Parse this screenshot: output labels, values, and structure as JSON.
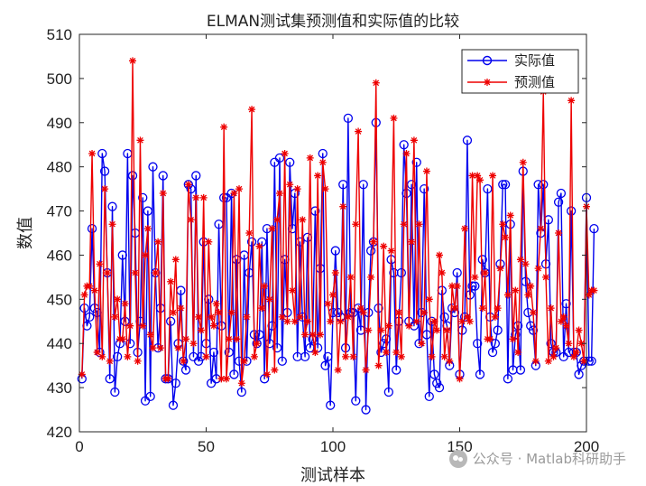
{
  "chart_data": {
    "type": "line",
    "title": "ELMAN测试集预测值和实际值的比较",
    "xlabel": "测试样本",
    "ylabel": "数值",
    "xlim": [
      0,
      200
    ],
    "ylim": [
      420,
      510
    ],
    "xticks": [
      0,
      50,
      100,
      150,
      200
    ],
    "yticks": [
      420,
      430,
      440,
      450,
      460,
      470,
      480,
      490,
      500,
      510
    ],
    "grid": false,
    "legend_position": "top-right",
    "series": [
      {
        "name": "实际值",
        "color": "#0000ee",
        "marker": "circle",
        "values": [
          432,
          448,
          444,
          446,
          466,
          448,
          447,
          438,
          483,
          479,
          456,
          432,
          471,
          429,
          437,
          440,
          460,
          445,
          483,
          440,
          478,
          465,
          438,
          445,
          473,
          427,
          470,
          428,
          480,
          456,
          439,
          448,
          478,
          432,
          432,
          445,
          426,
          431,
          440,
          452,
          436,
          434,
          476,
          475,
          437,
          478,
          436,
          437,
          463,
          440,
          450,
          431,
          438,
          432,
          467,
          444,
          473,
          473,
          438,
          474,
          433,
          459,
          436,
          429,
          460,
          436,
          456,
          463,
          442,
          440,
          442,
          463,
          432,
          466,
          440,
          444,
          481,
          439,
          482,
          436,
          459,
          447,
          481,
          466,
          474,
          437,
          463,
          446,
          437,
          464,
          439,
          441,
          470,
          439,
          457,
          483,
          435,
          437,
          426,
          447,
          461,
          447,
          446,
          476,
          439,
          491,
          447,
          447,
          427,
          448,
          443,
          476,
          425,
          447,
          461,
          463,
          490,
          448,
          438,
          440,
          441,
          429,
          459,
          456,
          434,
          445,
          456,
          485,
          474,
          445,
          476,
          444,
          481,
          440,
          447,
          475,
          442,
          428,
          445,
          433,
          431,
          430,
          452,
          446,
          444,
          435,
          448,
          447,
          456,
          433,
          443,
          446,
          486,
          451,
          453,
          453,
          440,
          433,
          459,
          456,
          475,
          446,
          438,
          440,
          443,
          458,
          476,
          476,
          432,
          467,
          434,
          442,
          444,
          434,
          479,
          454,
          447,
          444,
          443,
          435,
          476,
          465,
          476,
          458,
          468,
          440,
          438,
          438,
          472,
          474,
          437,
          449,
          438,
          470,
          438,
          438,
          433,
          435,
          436,
          473,
          436,
          436,
          466
        ]
      },
      {
        "name": "预测值",
        "color": "#ee0000",
        "marker": "asterisk",
        "values": [
          433,
          451,
          453,
          453,
          483,
          452,
          438,
          458,
          437,
          475,
          456,
          436,
          467,
          446,
          450,
          441,
          441,
          449,
          437,
          444,
          504,
          456,
          436,
          486,
          444,
          460,
          466,
          442,
          439,
          456,
          463,
          439,
          474,
          432,
          432,
          454,
          447,
          459,
          439,
          448,
          436,
          441,
          476,
          468,
          440,
          473,
          446,
          443,
          473,
          437,
          463,
          446,
          444,
          449,
          447,
          432,
          489,
          432,
          441,
          447,
          474,
          441,
          475,
          431,
          436,
          446,
          465,
          493,
          437,
          440,
          462,
          448,
          453,
          433,
          450,
          466,
          434,
          468,
          474,
          446,
          483,
          445,
          476,
          452,
          445,
          475,
          446,
          468,
          442,
          445,
          482,
          442,
          438,
          478,
          442,
          481,
          475,
          449,
          445,
          451,
          456,
          434,
          445,
          471,
          437,
          446,
          455,
          437,
          467,
          488,
          448,
          447,
          434,
          443,
          455,
          463,
          499,
          435,
          443,
          462,
          438,
          444,
          461,
          491,
          438,
          447,
          437,
          467,
          483,
          444,
          463,
          486,
          445,
          467,
          440,
          447,
          479,
          450,
          437,
          445,
          443,
          460,
          456,
          437,
          443,
          436,
          453,
          448,
          453,
          432,
          445,
          466,
          446,
          445,
          478,
          455,
          478,
          477,
          448,
          456,
          441,
          441,
          478,
          446,
          448,
          457,
          467,
          464,
          451,
          469,
          441,
          452,
          438,
          459,
          481,
          458,
          451,
          453,
          447,
          436,
          457,
          466,
          497,
          455,
          436,
          448,
          437,
          439,
          465,
          445,
          446,
          444,
          440,
          495,
          437,
          438,
          443,
          440,
          436,
          471,
          451,
          452,
          452
        ]
      }
    ]
  },
  "watermark": {
    "text": "公众号 · Matlab科研助手"
  }
}
